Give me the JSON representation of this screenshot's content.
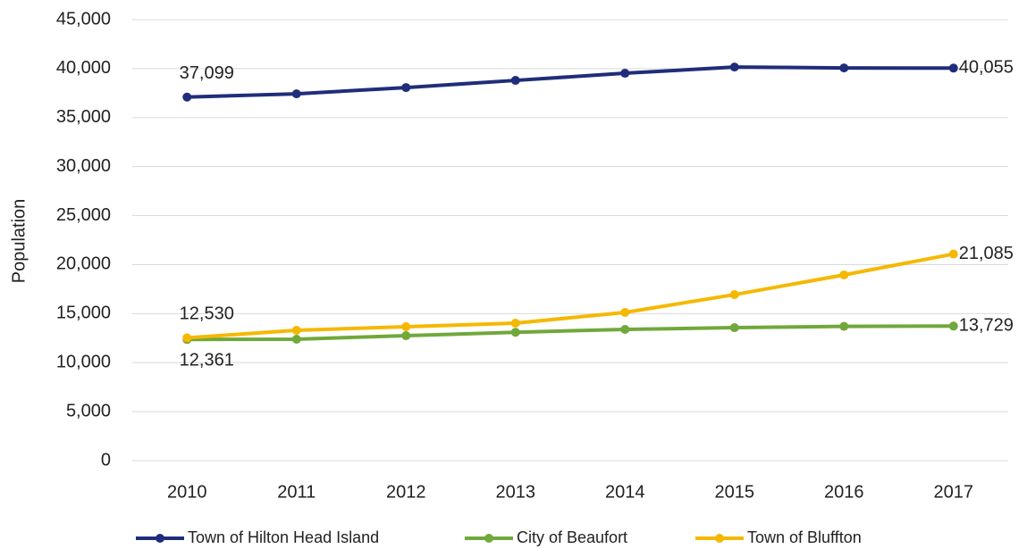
{
  "chart_data": {
    "type": "line",
    "y_label": "Population",
    "categories": [
      "2010",
      "2011",
      "2012",
      "2013",
      "2014",
      "2015",
      "2016",
      "2017"
    ],
    "series": [
      {
        "name": "Town of Hilton Head Island",
        "color": "#1f2d7a",
        "values": [
          37099,
          37430,
          38070,
          38800,
          39530,
          40160,
          40070,
          40055
        ],
        "value_labels": [
          "37,099",
          null,
          null,
          null,
          null,
          null,
          null,
          "40,055"
        ]
      },
      {
        "name": "City of Beaufort",
        "color": "#70a83b",
        "values": [
          12361,
          12390,
          12750,
          13100,
          13390,
          13570,
          13700,
          13729
        ],
        "value_labels": [
          "12,361",
          null,
          null,
          null,
          null,
          null,
          null,
          "13,729"
        ]
      },
      {
        "name": "Town of Bluffton",
        "color": "#f5b800",
        "values": [
          12530,
          13300,
          13660,
          14030,
          15120,
          16940,
          18950,
          21085
        ],
        "value_labels": [
          "12,530",
          null,
          null,
          null,
          null,
          null,
          null,
          "21,085"
        ]
      }
    ],
    "ylim": [
      0,
      45000
    ],
    "yticks": [
      0,
      {
        "value": 5000,
        "label": "5,000"
      },
      {
        "value": 10000,
        "label": "10,000"
      },
      {
        "value": 15000,
        "label": "15,000"
      },
      {
        "value": 20000,
        "label": "20,000"
      },
      {
        "value": 25000,
        "label": "25,000"
      },
      {
        "value": 30000,
        "label": "30,000"
      },
      {
        "value": 35000,
        "label": "35,000"
      },
      {
        "value": 40000,
        "label": "40,000"
      },
      {
        "value": 45000,
        "label": "45,000"
      }
    ],
    "grid": true,
    "legend": "bottom"
  }
}
